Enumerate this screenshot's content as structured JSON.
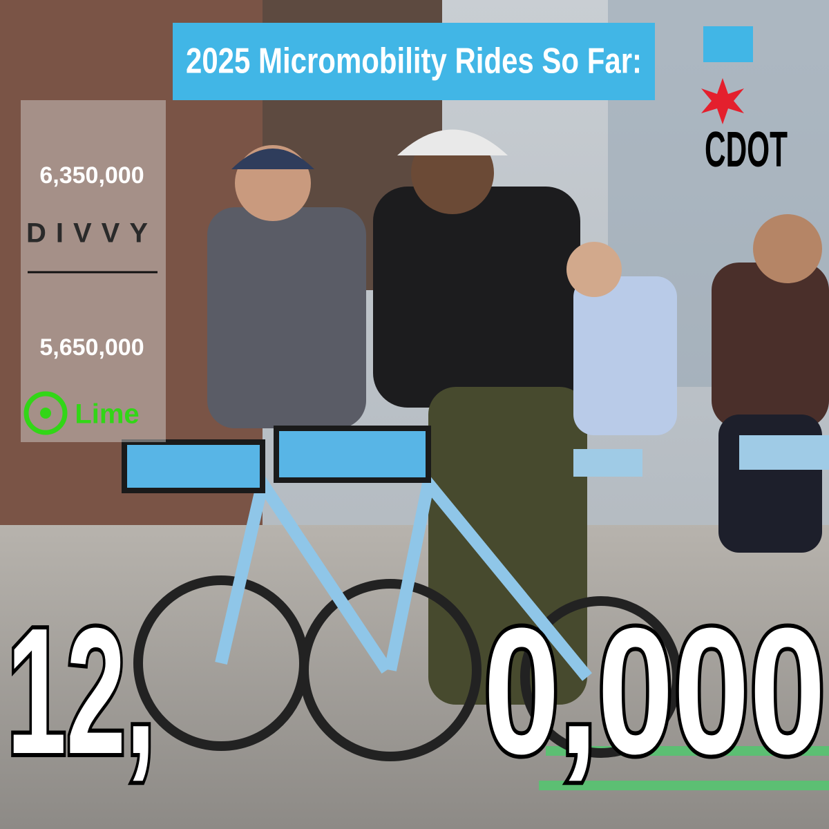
{
  "header": {
    "title": "2025 Micromobility Rides So Far:"
  },
  "logo": {
    "text": "CDOT"
  },
  "providers": [
    {
      "rides": "6,350,000",
      "name": "DIVVY"
    },
    {
      "rides": "5,650,000",
      "name": "Lime"
    }
  ],
  "total": {
    "left": "12,",
    "right": "0,000"
  }
}
